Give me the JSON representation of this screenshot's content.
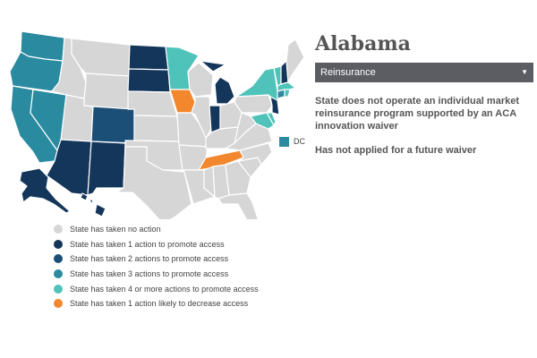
{
  "colors": {
    "none": "#d6d6d6",
    "one": "#14365a",
    "two": "#1c4f77",
    "three": "#2a8aa0",
    "four": "#4fc2b9",
    "decrease": "#f3872d"
  },
  "map": {
    "states": {
      "WA": "three",
      "OR": "three",
      "CA": "three",
      "NV": "three",
      "ID": "none",
      "MT": "none",
      "WY": "none",
      "UT": "none",
      "AZ": "one",
      "CO": "two",
      "NM": "one",
      "ND": "one",
      "SD": "one",
      "NE": "none",
      "KS": "none",
      "OK": "none",
      "TX": "none",
      "MN": "four",
      "IA": "decrease",
      "MO": "none",
      "AR": "none",
      "LA": "none",
      "WI": "none",
      "IL": "none",
      "MI": "one",
      "IN": "one",
      "OH": "none",
      "KY": "none",
      "TN": "decrease",
      "MS": "none",
      "AL": "none",
      "GA": "none",
      "FL": "none",
      "SC": "none",
      "NC": "none",
      "VA": "none",
      "WV": "none",
      "PA": "none",
      "NY": "four",
      "ME": "none",
      "VT": "four",
      "NH": "one",
      "MA": "four",
      "CT": "three",
      "RI": "four",
      "NJ": "one",
      "DE": "four",
      "MD": "four",
      "AK": "one",
      "HI": "one"
    },
    "dc": {
      "label": "DC",
      "status": "three"
    }
  },
  "legend": [
    {
      "label": "State has taken no action",
      "status": "none"
    },
    {
      "label": "State has taken 1 action to promote access",
      "status": "one"
    },
    {
      "label": "State has taken 2 actions to promote access",
      "status": "two"
    },
    {
      "label": "State has taken 3 actions to promote access",
      "status": "three"
    },
    {
      "label": "State has taken 4 or more actions to promote access",
      "status": "four"
    },
    {
      "label": "State has taken 1 action likely to decrease access",
      "status": "decrease"
    }
  ],
  "panel": {
    "state_name": "Alabama",
    "dropdown_value": "Reinsurance",
    "info_line1": "State does not operate an individual market reinsurance program supported by an ACA innovation waiver",
    "info_line2": "Has not applied for a future waiver"
  }
}
